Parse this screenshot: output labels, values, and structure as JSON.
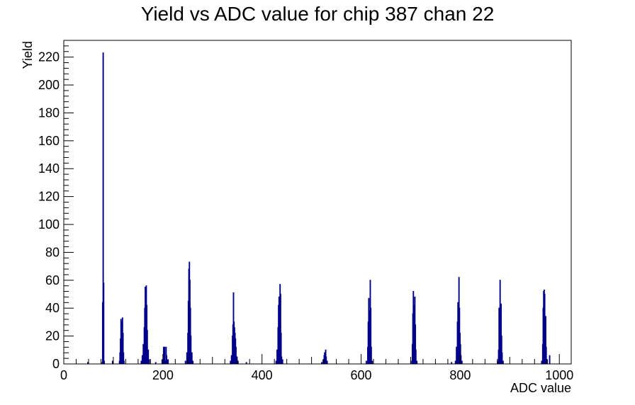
{
  "chart_data": {
    "type": "histogram",
    "title": "Yield vs ADC value for chip 387 chan 22",
    "xlabel": "ADC value",
    "ylabel": "Yield",
    "xlim": [
      0,
      1024
    ],
    "ylim": [
      0,
      232
    ],
    "x_major_ticks": [
      0,
      200,
      400,
      600,
      800,
      1000
    ],
    "y_major_ticks": [
      0,
      20,
      40,
      60,
      80,
      100,
      120,
      140,
      160,
      180,
      200,
      220
    ],
    "line_color": "#00008b",
    "frame_color": "#000000",
    "grid": false,
    "bins": [
      {
        "x": 48,
        "y": 1
      },
      {
        "x": 77,
        "y": 1
      },
      {
        "x": 78,
        "y": 44
      },
      {
        "x": 79,
        "y": 223
      },
      {
        "x": 80,
        "y": 58
      },
      {
        "x": 81,
        "y": 2
      },
      {
        "x": 98,
        "y": 2
      },
      {
        "x": 112,
        "y": 2
      },
      {
        "x": 113,
        "y": 8
      },
      {
        "x": 114,
        "y": 18
      },
      {
        "x": 115,
        "y": 32
      },
      {
        "x": 116,
        "y": 30
      },
      {
        "x": 117,
        "y": 12
      },
      {
        "x": 118,
        "y": 33
      },
      {
        "x": 119,
        "y": 22
      },
      {
        "x": 120,
        "y": 8
      },
      {
        "x": 121,
        "y": 2
      },
      {
        "x": 156,
        "y": 2
      },
      {
        "x": 158,
        "y": 6
      },
      {
        "x": 160,
        "y": 14
      },
      {
        "x": 162,
        "y": 26
      },
      {
        "x": 163,
        "y": 40
      },
      {
        "x": 164,
        "y": 55
      },
      {
        "x": 165,
        "y": 52
      },
      {
        "x": 166,
        "y": 56
      },
      {
        "x": 167,
        "y": 42
      },
      {
        "x": 168,
        "y": 24
      },
      {
        "x": 170,
        "y": 10
      },
      {
        "x": 172,
        "y": 3
      },
      {
        "x": 185,
        "y": 1
      },
      {
        "x": 198,
        "y": 3
      },
      {
        "x": 201,
        "y": 12
      },
      {
        "x": 202,
        "y": 6
      },
      {
        "x": 203,
        "y": 12
      },
      {
        "x": 204,
        "y": 2
      },
      {
        "x": 206,
        "y": 12
      },
      {
        "x": 207,
        "y": 6
      },
      {
        "x": 208,
        "y": 3
      },
      {
        "x": 210,
        "y": 3
      },
      {
        "x": 245,
        "y": 2
      },
      {
        "x": 248,
        "y": 8
      },
      {
        "x": 250,
        "y": 22
      },
      {
        "x": 251,
        "y": 45
      },
      {
        "x": 252,
        "y": 68
      },
      {
        "x": 253,
        "y": 73
      },
      {
        "x": 254,
        "y": 60
      },
      {
        "x": 255,
        "y": 40
      },
      {
        "x": 256,
        "y": 20
      },
      {
        "x": 258,
        "y": 8
      },
      {
        "x": 260,
        "y": 2
      },
      {
        "x": 336,
        "y": 2
      },
      {
        "x": 338,
        "y": 6
      },
      {
        "x": 340,
        "y": 20
      },
      {
        "x": 341,
        "y": 28
      },
      {
        "x": 342,
        "y": 51
      },
      {
        "x": 343,
        "y": 30
      },
      {
        "x": 344,
        "y": 26
      },
      {
        "x": 345,
        "y": 22
      },
      {
        "x": 346,
        "y": 18
      },
      {
        "x": 347,
        "y": 12
      },
      {
        "x": 349,
        "y": 5
      },
      {
        "x": 351,
        "y": 2
      },
      {
        "x": 368,
        "y": 1
      },
      {
        "x": 428,
        "y": 2
      },
      {
        "x": 430,
        "y": 10
      },
      {
        "x": 432,
        "y": 26
      },
      {
        "x": 433,
        "y": 42
      },
      {
        "x": 434,
        "y": 48
      },
      {
        "x": 435,
        "y": 40
      },
      {
        "x": 436,
        "y": 57
      },
      {
        "x": 437,
        "y": 50
      },
      {
        "x": 438,
        "y": 22
      },
      {
        "x": 439,
        "y": 5
      },
      {
        "x": 441,
        "y": 3
      },
      {
        "x": 520,
        "y": 1
      },
      {
        "x": 523,
        "y": 3
      },
      {
        "x": 525,
        "y": 6
      },
      {
        "x": 526,
        "y": 8
      },
      {
        "x": 527,
        "y": 4
      },
      {
        "x": 528,
        "y": 10
      },
      {
        "x": 529,
        "y": 5
      },
      {
        "x": 531,
        "y": 2
      },
      {
        "x": 610,
        "y": 2
      },
      {
        "x": 613,
        "y": 12
      },
      {
        "x": 614,
        "y": 30
      },
      {
        "x": 615,
        "y": 47
      },
      {
        "x": 616,
        "y": 38
      },
      {
        "x": 617,
        "y": 24
      },
      {
        "x": 618,
        "y": 60
      },
      {
        "x": 619,
        "y": 40
      },
      {
        "x": 620,
        "y": 12
      },
      {
        "x": 622,
        "y": 2
      },
      {
        "x": 700,
        "y": 2
      },
      {
        "x": 703,
        "y": 14
      },
      {
        "x": 704,
        "y": 36
      },
      {
        "x": 705,
        "y": 52
      },
      {
        "x": 706,
        "y": 30
      },
      {
        "x": 707,
        "y": 42
      },
      {
        "x": 708,
        "y": 48
      },
      {
        "x": 709,
        "y": 28
      },
      {
        "x": 710,
        "y": 10
      },
      {
        "x": 712,
        "y": 2
      },
      {
        "x": 782,
        "y": 1
      },
      {
        "x": 790,
        "y": 2
      },
      {
        "x": 792,
        "y": 12
      },
      {
        "x": 794,
        "y": 30
      },
      {
        "x": 795,
        "y": 44
      },
      {
        "x": 796,
        "y": 36
      },
      {
        "x": 797,
        "y": 62
      },
      {
        "x": 798,
        "y": 40
      },
      {
        "x": 799,
        "y": 22
      },
      {
        "x": 800,
        "y": 14
      },
      {
        "x": 801,
        "y": 6
      },
      {
        "x": 803,
        "y": 2
      },
      {
        "x": 875,
        "y": 2
      },
      {
        "x": 877,
        "y": 10
      },
      {
        "x": 878,
        "y": 40
      },
      {
        "x": 879,
        "y": 30
      },
      {
        "x": 880,
        "y": 60
      },
      {
        "x": 881,
        "y": 42
      },
      {
        "x": 882,
        "y": 43
      },
      {
        "x": 883,
        "y": 20
      },
      {
        "x": 884,
        "y": 8
      },
      {
        "x": 886,
        "y": 2
      },
      {
        "x": 964,
        "y": 2
      },
      {
        "x": 966,
        "y": 14
      },
      {
        "x": 967,
        "y": 40
      },
      {
        "x": 968,
        "y": 52
      },
      {
        "x": 969,
        "y": 53
      },
      {
        "x": 970,
        "y": 50
      },
      {
        "x": 971,
        "y": 34
      },
      {
        "x": 972,
        "y": 34
      },
      {
        "x": 973,
        "y": 12
      },
      {
        "x": 975,
        "y": 3
      },
      {
        "x": 980,
        "y": 6
      }
    ]
  }
}
